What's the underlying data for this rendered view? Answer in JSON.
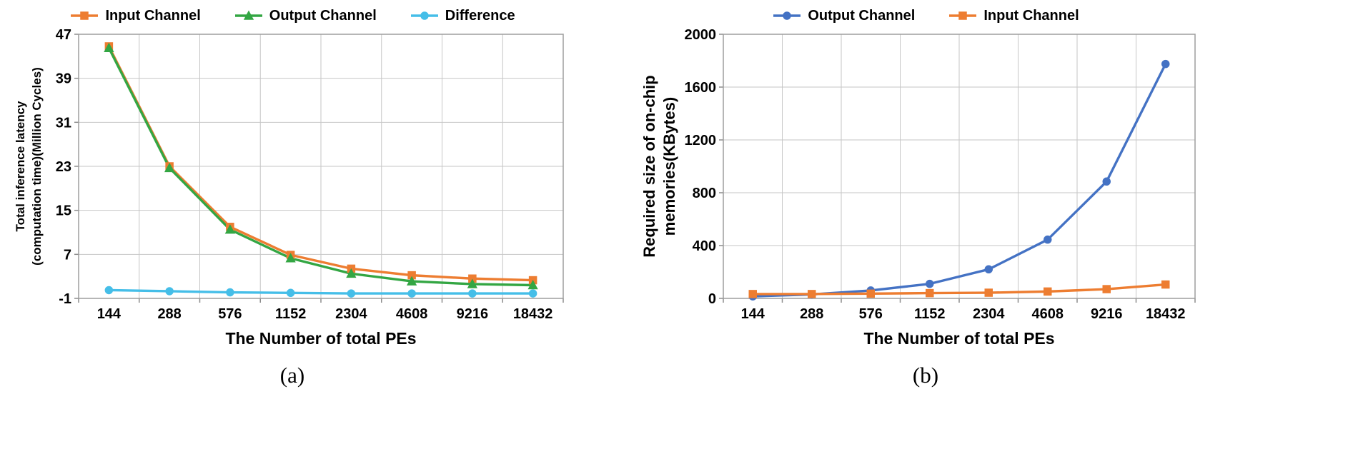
{
  "chart_data": [
    {
      "type": "line",
      "caption": "(a)",
      "xlabel": "The Number of total PEs",
      "ylabel_lines": [
        "Total inference latency",
        "(computation time)(Million Cycles)"
      ],
      "categories": [
        "144",
        "288",
        "576",
        "1152",
        "2304",
        "4608",
        "9216",
        "18432"
      ],
      "ylim": [
        -1,
        47
      ],
      "yticks": [
        -1,
        7,
        15,
        23,
        31,
        39,
        47
      ],
      "grid": true,
      "legend_position": "top",
      "series": [
        {
          "name": "Input Channel",
          "marker": "square",
          "color": "#ED7D31",
          "values": [
            44.8,
            23.0,
            12.0,
            6.9,
            4.4,
            3.2,
            2.6,
            2.3
          ]
        },
        {
          "name": "Output Channel",
          "marker": "triangle",
          "color": "#33A643",
          "values": [
            44.5,
            22.7,
            11.5,
            6.3,
            3.5,
            2.1,
            1.6,
            1.4
          ]
        },
        {
          "name": "Difference",
          "marker": "circle",
          "color": "#45BEE8",
          "values": [
            0.5,
            0.3,
            0.1,
            0.0,
            -0.1,
            -0.1,
            -0.1,
            -0.1
          ]
        }
      ]
    },
    {
      "type": "line",
      "caption": "(b)",
      "xlabel": "The Number of total PEs",
      "ylabel_lines": [
        "Required size of on-chip",
        "memories(KBytes)"
      ],
      "categories": [
        "144",
        "288",
        "576",
        "1152",
        "2304",
        "4608",
        "9216",
        "18432"
      ],
      "ylim": [
        0,
        2000
      ],
      "yticks": [
        0,
        400,
        800,
        1200,
        1600,
        2000
      ],
      "grid": true,
      "legend_position": "top",
      "series": [
        {
          "name": "Output Channel",
          "marker": "circle",
          "color": "#4472C4",
          "values": [
            15,
            30,
            60,
            110,
            220,
            445,
            885,
            1775
          ]
        },
        {
          "name": "Input Channel",
          "marker": "square",
          "color": "#ED7D31",
          "values": [
            33,
            33,
            36,
            40,
            43,
            52,
            70,
            105
          ]
        }
      ]
    }
  ]
}
